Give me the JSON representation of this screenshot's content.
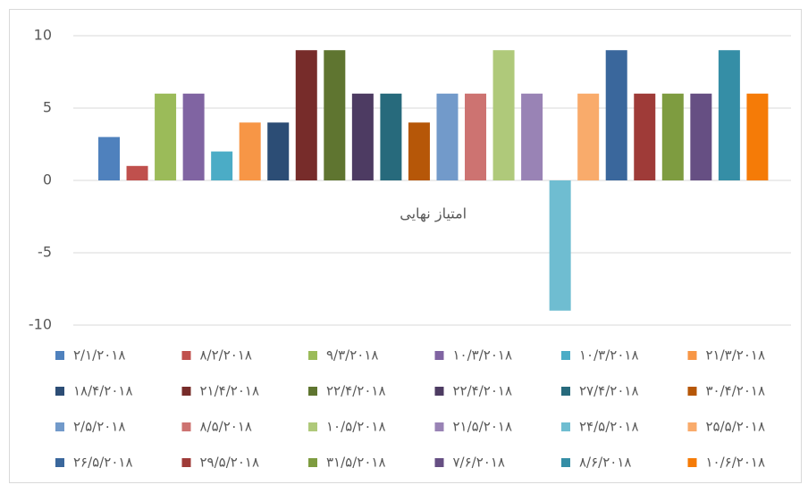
{
  "chart_data": {
    "type": "bar",
    "categories": [
      "امتیاز نهایی"
    ],
    "series": [
      {
        "name": "۲/۱/۲۰۱۸",
        "color": "#4f81bd",
        "values": [
          3
        ]
      },
      {
        "name": "۸/۲/۲۰۱۸",
        "color": "#c0504d",
        "values": [
          1
        ]
      },
      {
        "name": "۹/۳/۲۰۱۸",
        "color": "#9bbb59",
        "values": [
          6
        ]
      },
      {
        "name": "۱۰/۳/۲۰۱۸",
        "color": "#8064a2",
        "values": [
          6
        ]
      },
      {
        "name": "۱۰/۳/۲۰۱۸",
        "color": "#4bacc6",
        "values": [
          2
        ]
      },
      {
        "name": "۲۱/۳/۲۰۱۸",
        "color": "#f79646",
        "values": [
          4
        ]
      },
      {
        "name": "۱۸/۴/۲۰۱۸",
        "color": "#2c4d75",
        "values": [
          4
        ]
      },
      {
        "name": "۲۱/۴/۲۰۱۸",
        "color": "#772c2a",
        "values": [
          9
        ]
      },
      {
        "name": "۲۲/۴/۲۰۱۸",
        "color": "#5f7530",
        "values": [
          9
        ]
      },
      {
        "name": "۲۲/۴/۲۰۱۸",
        "color": "#4d3b62",
        "values": [
          6
        ]
      },
      {
        "name": "۲۷/۴/۲۰۱۸",
        "color": "#276a7c",
        "values": [
          6
        ]
      },
      {
        "name": "۳۰/۴/۲۰۱۸",
        "color": "#b65708",
        "values": [
          4
        ]
      },
      {
        "name": "۲/۵/۲۰۱۸",
        "color": "#729aca",
        "values": [
          6
        ]
      },
      {
        "name": "۸/۵/۲۰۱۸",
        "color": "#cd7371",
        "values": [
          6
        ]
      },
      {
        "name": "۱۰/۵/۲۰۱۸",
        "color": "#afc97a",
        "values": [
          9
        ]
      },
      {
        "name": "۲۱/۵/۲۰۱۸",
        "color": "#9983b5",
        "values": [
          6
        ]
      },
      {
        "name": "۲۴/۵/۲۰۱۸",
        "color": "#6fbdd1",
        "values": [
          -9
        ]
      },
      {
        "name": "۲۵/۵/۲۰۱۸",
        "color": "#f9ab6b",
        "values": [
          6
        ]
      },
      {
        "name": "۲۶/۵/۲۰۱۸",
        "color": "#3a679c",
        "values": [
          9
        ]
      },
      {
        "name": "۲۹/۵/۲۰۱۸",
        "color": "#9f3b38",
        "values": [
          6
        ]
      },
      {
        "name": "۳۱/۵/۲۰۱۸",
        "color": "#7e9c40",
        "values": [
          6
        ]
      },
      {
        "name": "۷/۶/۲۰۱۸",
        "color": "#664f83",
        "values": [
          6
        ]
      },
      {
        "name": "۸/۶/۲۰۱۸",
        "color": "#358ea6",
        "values": [
          9
        ]
      },
      {
        "name": "۱۰/۶/۲۰۱۸",
        "color": "#f57b07",
        "values": [
          6
        ]
      }
    ],
    "ylim": [
      -10,
      10
    ],
    "yticks": [
      -10,
      -5,
      0,
      5,
      10
    ],
    "grid": true,
    "legend": "bottom"
  }
}
